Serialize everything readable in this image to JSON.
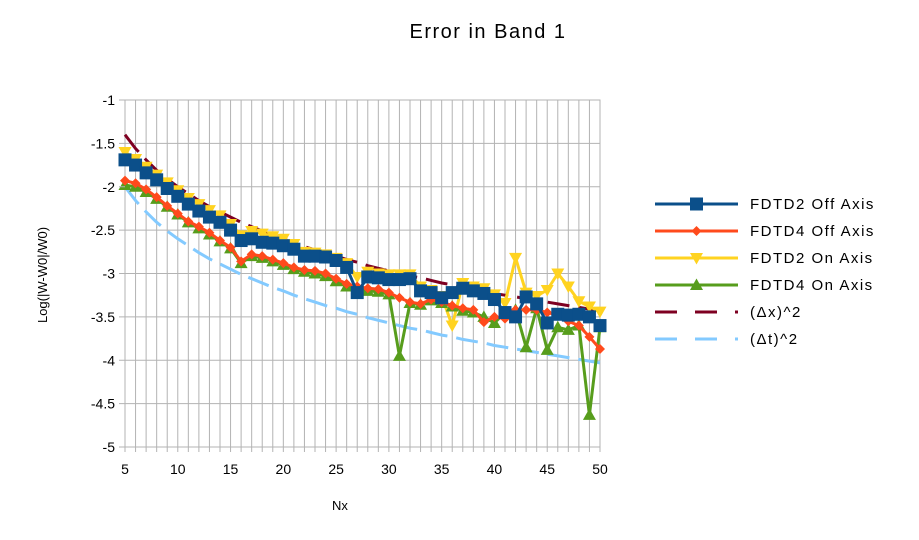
{
  "chart_data": {
    "type": "line",
    "title": "Error in Band 1",
    "xlabel": "Nx",
    "ylabel": "Log(|W-W0|/W0)",
    "xlim": [
      5,
      50
    ],
    "ylim": [
      -5,
      -1
    ],
    "x_ticks": [
      "5",
      "10",
      "15",
      "20",
      "25",
      "30",
      "35",
      "40",
      "45",
      "50"
    ],
    "y_ticks": [
      "-1",
      "-1.5",
      "-2",
      "-2.5",
      "-3",
      "-3.5",
      "-4",
      "-4.5",
      "-5"
    ],
    "grid": true,
    "legend_position": "right",
    "x": [
      5,
      6,
      7,
      8,
      9,
      10,
      11,
      12,
      13,
      14,
      15,
      16,
      17,
      18,
      19,
      20,
      21,
      22,
      23,
      24,
      25,
      26,
      27,
      28,
      29,
      30,
      31,
      32,
      33,
      34,
      35,
      36,
      37,
      38,
      39,
      40,
      41,
      42,
      43,
      44,
      45,
      46,
      47,
      48,
      49,
      50
    ],
    "series": [
      {
        "name": "FDTD2 Off Axis",
        "color": "#0b4f8a",
        "marker": "square",
        "values": [
          -1.69,
          -1.75,
          -1.84,
          -1.92,
          -2.02,
          -2.11,
          -2.2,
          -2.28,
          -2.35,
          -2.41,
          -2.5,
          -2.62,
          -2.6,
          -2.64,
          -2.65,
          -2.68,
          -2.72,
          -2.8,
          -2.8,
          -2.81,
          -2.85,
          -2.93,
          -3.22,
          -3.04,
          -3.05,
          -3.07,
          -3.07,
          -3.06,
          -3.2,
          -3.22,
          -3.28,
          -3.22,
          -3.17,
          -3.2,
          -3.23,
          -3.3,
          -3.45,
          -3.5,
          -3.27,
          -3.35,
          -3.57,
          -3.47,
          -3.48,
          -3.47,
          -3.5,
          -3.6
        ]
      },
      {
        "name": "FDTD4 Off Axis",
        "color": "#ff4a1c",
        "marker": "diamond",
        "values": [
          -1.93,
          -1.96,
          -2.03,
          -2.12,
          -2.22,
          -2.31,
          -2.4,
          -2.46,
          -2.53,
          -2.62,
          -2.7,
          -2.86,
          -2.78,
          -2.8,
          -2.84,
          -2.88,
          -2.93,
          -2.96,
          -2.97,
          -3.0,
          -3.06,
          -3.12,
          -3.15,
          -3.17,
          -3.18,
          -3.22,
          -3.28,
          -3.33,
          -3.35,
          -3.3,
          -3.33,
          -3.37,
          -3.4,
          -3.42,
          -3.56,
          -3.5,
          -3.52,
          -3.42,
          -3.42,
          -3.42,
          -3.45,
          -3.48,
          -3.55,
          -3.6,
          -3.73,
          -3.87
        ]
      },
      {
        "name": "FDTD2 On Axis",
        "color": "#ffd320",
        "marker": "triangle-down",
        "values": [
          -1.6,
          -1.68,
          -1.77,
          -1.86,
          -1.95,
          -2.04,
          -2.13,
          -2.2,
          -2.27,
          -2.33,
          -2.43,
          -2.56,
          -2.51,
          -2.54,
          -2.57,
          -2.6,
          -2.66,
          -2.75,
          -2.76,
          -2.78,
          -2.82,
          -2.88,
          -3.04,
          -2.98,
          -3.0,
          -3.01,
          -3.01,
          -3.01,
          -3.15,
          -3.19,
          -3.26,
          -3.6,
          -3.11,
          -3.15,
          -3.17,
          -3.24,
          -3.34,
          -2.82,
          -3.22,
          -3.26,
          -3.19,
          -3.0,
          -3.15,
          -3.32,
          -3.38,
          -3.44
        ]
      },
      {
        "name": "FDTD4 On Axis",
        "color": "#579d1c",
        "marker": "triangle-up",
        "values": [
          -1.98,
          -2.0,
          -2.06,
          -2.14,
          -2.23,
          -2.32,
          -2.41,
          -2.48,
          -2.55,
          -2.63,
          -2.71,
          -2.88,
          -2.8,
          -2.82,
          -2.86,
          -2.9,
          -2.95,
          -2.98,
          -3.0,
          -3.03,
          -3.09,
          -3.15,
          -3.18,
          -3.2,
          -3.21,
          -3.24,
          -3.95,
          -3.34,
          -3.36,
          -3.31,
          -3.34,
          -3.38,
          -3.43,
          -3.45,
          -3.5,
          -3.57,
          -3.45,
          -3.42,
          -3.85,
          -3.4,
          -3.88,
          -3.62,
          -3.65,
          -3.6,
          -4.63,
          -3.62
        ]
      },
      {
        "name": "(Δx)^2",
        "color": "#7e0021",
        "dash": "long",
        "values": [
          -1.4,
          -1.56,
          -1.69,
          -1.81,
          -1.91,
          -2.0,
          -2.08,
          -2.16,
          -2.23,
          -2.29,
          -2.35,
          -2.41,
          -2.46,
          -2.51,
          -2.56,
          -2.6,
          -2.65,
          -2.69,
          -2.73,
          -2.77,
          -2.8,
          -2.84,
          -2.87,
          -2.91,
          -2.94,
          -2.97,
          -3.0,
          -3.03,
          -3.05,
          -3.08,
          -3.11,
          -3.13,
          -3.16,
          -3.18,
          -3.2,
          -3.23,
          -3.25,
          -3.27,
          -3.29,
          -3.31,
          -3.33,
          -3.35,
          -3.37,
          -3.39,
          -3.41,
          -3.43
        ]
      },
      {
        "name": "(Δt)^2",
        "color": "#83caff",
        "dash": "long",
        "values": [
          -2.0,
          -2.16,
          -2.29,
          -2.41,
          -2.51,
          -2.6,
          -2.68,
          -2.76,
          -2.83,
          -2.89,
          -2.95,
          -3.01,
          -3.06,
          -3.11,
          -3.16,
          -3.2,
          -3.25,
          -3.29,
          -3.33,
          -3.37,
          -3.4,
          -3.44,
          -3.47,
          -3.51,
          -3.54,
          -3.57,
          -3.6,
          -3.63,
          -3.65,
          -3.68,
          -3.71,
          -3.73,
          -3.76,
          -3.78,
          -3.8,
          -3.83,
          -3.85,
          -3.87,
          -3.89,
          -3.91,
          -3.93,
          -3.95,
          -3.97,
          -3.99,
          -4.01,
          -4.03
        ]
      }
    ]
  }
}
